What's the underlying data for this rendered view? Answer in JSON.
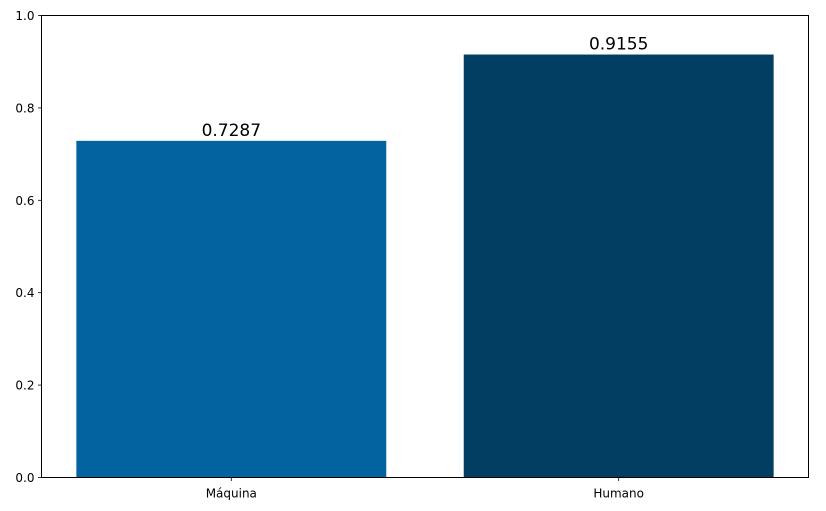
{
  "chart_data": {
    "type": "bar",
    "categories": [
      "Máquina",
      "Humano"
    ],
    "values": [
      0.7287,
      0.9155
    ],
    "value_labels": [
      "0.7287",
      "0.9155"
    ],
    "colors": [
      "#0363A0",
      "#023D62"
    ],
    "ylim": [
      0,
      1.0
    ],
    "yticks": [
      0.0,
      0.2,
      0.4,
      0.6,
      0.8,
      1.0
    ],
    "ytick_labels": [
      "0.0",
      "0.2",
      "0.4",
      "0.6",
      "0.8",
      "1.0"
    ],
    "grid": false,
    "title": "",
    "xlabel": "",
    "ylabel": ""
  }
}
